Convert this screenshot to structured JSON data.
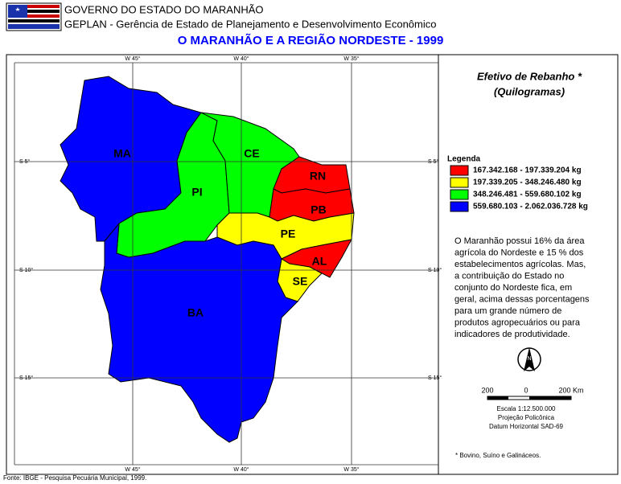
{
  "header": {
    "line1": "GOVERNO DO ESTADO DO MARANHÃO",
    "line2": "GEPLAN - Gerência de Estado de Planejamento e Desenvolvimento Econômico",
    "title": "O MARANHÃO E A REGIÃO NORDESTE - 1999"
  },
  "map": {
    "lon_labels": [
      "W 45°",
      "W 40°",
      "W 35°"
    ],
    "lat_labels": [
      "S 5°",
      "S 10°",
      "S 15°"
    ],
    "states": [
      {
        "label": "MA",
        "color": "#0000ff"
      },
      {
        "label": "PI",
        "color": "#00ff00"
      },
      {
        "label": "CE",
        "color": "#00ff00"
      },
      {
        "label": "RN",
        "color": "#ff0000"
      },
      {
        "label": "PB",
        "color": "#ff0000"
      },
      {
        "label": "PE",
        "color": "#ffff00"
      },
      {
        "label": "AL",
        "color": "#ff0000"
      },
      {
        "label": "SE",
        "color": "#ffff00"
      },
      {
        "label": "BA",
        "color": "#0000ff"
      }
    ]
  },
  "panel": {
    "title": "Efetivo de Rebanho *",
    "unit": "(Quilogramas)",
    "legend_title": "Legenda",
    "legend": [
      {
        "label": "167.342.168 - 197.339.204 kg",
        "color": "#ff0000"
      },
      {
        "label": "197.339.205 - 348.246.480 kg",
        "color": "#ffff00"
      },
      {
        "label": "348.246.481 - 559.680.102 kg",
        "color": "#00ff00"
      },
      {
        "label": "559.680.103 - 2.062.036.728 kg",
        "color": "#0000ff"
      }
    ],
    "text": [
      "O Maranhão possui 16% da área",
      "agrícola do Nordeste e 15 % dos",
      "estabelecimentos agrícolas. Mas,",
      "a contribuição do Estado no",
      "conjunto do Nordeste fica, em",
      "geral, acima dessas porcentagens",
      "para um grande número de",
      "produtos agropecuários ou para",
      "indicadores de produtividade."
    ],
    "north": "N",
    "scale_left": "200",
    "scale_mid": "0",
    "scale_right": "200 Km",
    "scale": "Escala 1:12.500.000",
    "projection": "Projeção Policônica",
    "datum": "Datum Horizontal SAD-69",
    "footnote": "* Bovino, Suíno e Galináceos."
  },
  "footer": "Fonte: IBGE - Pesquisa Pecuária Municipal, 1999."
}
